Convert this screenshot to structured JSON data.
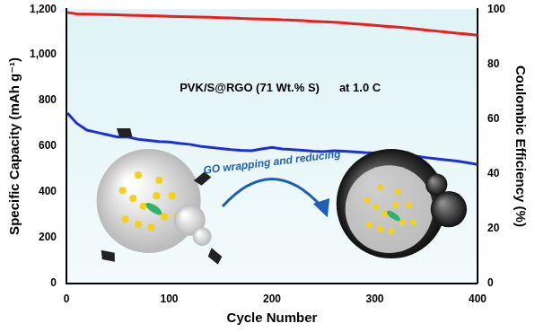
{
  "chart_data": {
    "type": "line",
    "x_label": "Cycle Number",
    "y_label": "Specific Capacity (mAh g⁻¹)",
    "y2_label": "Coulombic Efficiency (%)",
    "annotations": [
      "PVK/S@RGO (71 Wt.% S)",
      "at 1.0 C",
      "GO wrapping and reducing"
    ],
    "x": [
      1,
      10,
      20,
      30,
      40,
      50,
      60,
      70,
      80,
      90,
      100,
      110,
      120,
      130,
      140,
      150,
      160,
      170,
      180,
      190,
      200,
      210,
      220,
      230,
      240,
      250,
      260,
      270,
      280,
      290,
      300,
      310,
      320,
      330,
      340,
      350,
      360,
      370,
      380,
      390,
      400
    ],
    "series": [
      {
        "name": "Specific Capacity",
        "color": "#1f2fd8",
        "axis": "y",
        "values": [
          745,
          700,
          670,
          660,
          650,
          640,
          640,
          630,
          625,
          620,
          618,
          612,
          608,
          600,
          595,
          590,
          585,
          582,
          580,
          588,
          595,
          588,
          585,
          582,
          578,
          576,
          580,
          578,
          575,
          572,
          570,
          568,
          565,
          560,
          556,
          550,
          545,
          540,
          535,
          528,
          520
        ]
      },
      {
        "name": "Coulombic Efficiency",
        "color": "#ee1c1c",
        "axis": "y2",
        "values": [
          98.8,
          98.3,
          98.2,
          98.1,
          98.0,
          97.9,
          97.8,
          97.7,
          97.6,
          97.5,
          97.4,
          97.3,
          97.2,
          97.1,
          97.0,
          96.9,
          96.8,
          96.6,
          96.5,
          96.4,
          96.3,
          96.1,
          96.0,
          95.8,
          95.6,
          95.4,
          95.2,
          95.0,
          94.7,
          94.4,
          94.1,
          93.8,
          93.5,
          93.2,
          92.8,
          92.4,
          92.0,
          91.6,
          91.2,
          90.9,
          90.5
        ]
      }
    ],
    "xlim": [
      0,
      400
    ],
    "xticks": [
      0,
      100,
      200,
      300,
      400
    ],
    "ylim": [
      0,
      1200
    ],
    "yticks": [
      0,
      200,
      400,
      600,
      800,
      1000,
      1200
    ],
    "y2lim": [
      0,
      100
    ],
    "y2ticks": [
      0,
      20,
      40,
      60,
      80,
      100
    ],
    "grid": false
  }
}
